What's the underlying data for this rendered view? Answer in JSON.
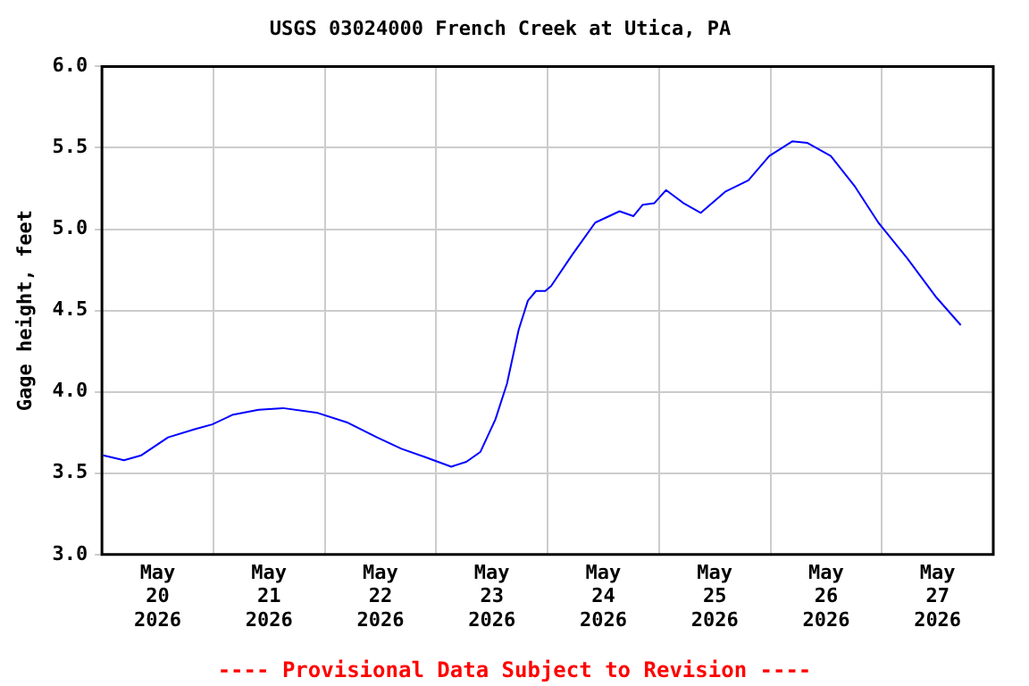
{
  "chart_data": {
    "type": "line",
    "title": "USGS 03024000 French Creek at Utica, PA",
    "ylabel": "Gage height, feet",
    "annotations": [
      "---- Provisional Data Subject to Revision ----"
    ],
    "x": [
      "2026-05-20T00:15",
      "2026-05-20T04:45",
      "2026-05-20T08:30",
      "2026-05-20T14:15",
      "2026-05-20T20:00",
      "2026-05-20T23:45",
      "2026-05-21T04:15",
      "2026-05-21T09:45",
      "2026-05-21T15:00",
      "2026-05-21T22:30",
      "2026-05-22T05:00",
      "2026-05-22T11:15",
      "2026-05-22T16:30",
      "2026-05-22T21:30",
      "2026-05-23T03:15",
      "2026-05-23T06:30",
      "2026-05-23T09:30",
      "2026-05-23T12:45",
      "2026-05-23T15:15",
      "2026-05-23T17:45",
      "2026-05-23T19:45",
      "2026-05-23T21:30",
      "2026-05-23T23:30",
      "2026-05-24T00:45",
      "2026-05-24T05:15",
      "2026-05-24T10:15",
      "2026-05-24T15:30",
      "2026-05-24T18:30",
      "2026-05-24T20:30",
      "2026-05-24T23:00",
      "2026-05-25T01:30",
      "2026-05-25T05:15",
      "2026-05-25T09:00",
      "2026-05-25T14:15",
      "2026-05-25T19:15",
      "2026-05-25T23:45",
      "2026-05-26T04:45",
      "2026-05-26T08:00",
      "2026-05-26T13:00",
      "2026-05-26T18:15",
      "2026-05-26T23:15",
      "2026-05-27T05:30",
      "2026-05-27T11:45",
      "2026-05-27T17:00"
    ],
    "series": [
      {
        "color": "#0000ff",
        "values": [
          3.61,
          3.58,
          3.61,
          3.72,
          3.77,
          3.8,
          3.86,
          3.89,
          3.9,
          3.87,
          3.81,
          3.72,
          3.65,
          3.6,
          3.54,
          3.57,
          3.63,
          3.83,
          4.05,
          4.38,
          4.56,
          4.62,
          4.62,
          4.65,
          4.84,
          5.04,
          5.11,
          5.08,
          5.15,
          5.16,
          5.24,
          5.16,
          5.1,
          5.23,
          5.3,
          5.45,
          5.54,
          5.53,
          5.45,
          5.26,
          5.04,
          4.82,
          4.58,
          4.41
        ]
      }
    ],
    "xlim": [
      "2026-05-20T00:00",
      "2026-05-28T00:00"
    ],
    "xticks": [
      {
        "value": "2026-05-20T12:00",
        "label": "May\n20\n2026"
      },
      {
        "value": "2026-05-21T00:00",
        "label": null
      },
      {
        "value": "2026-05-21T12:00",
        "label": "May\n21\n2026"
      },
      {
        "value": "2026-05-22T00:00",
        "label": null
      },
      {
        "value": "2026-05-22T12:00",
        "label": "May\n22\n2026"
      },
      {
        "value": "2026-05-23T00:00",
        "label": null
      },
      {
        "value": "2026-05-23T12:00",
        "label": "May\n23\n2026"
      },
      {
        "value": "2026-05-24T00:00",
        "label": null
      },
      {
        "value": "2026-05-24T12:00",
        "label": "May\n24\n2026"
      },
      {
        "value": "2026-05-25T00:00",
        "label": null
      },
      {
        "value": "2026-05-25T12:00",
        "label": "May\n25\n2026"
      },
      {
        "value": "2026-05-26T00:00",
        "label": null
      },
      {
        "value": "2026-05-26T12:00",
        "label": "May\n26\n2026"
      },
      {
        "value": "2026-05-27T00:00",
        "label": null
      },
      {
        "value": "2026-05-27T12:00",
        "label": "May\n27\n2026"
      }
    ],
    "ylim": [
      3.0,
      6.0
    ],
    "yticks": [
      {
        "value": 3.0,
        "label": "3.0"
      },
      {
        "value": 3.5,
        "label": "3.5"
      },
      {
        "value": 4.0,
        "label": "4.0"
      },
      {
        "value": 4.5,
        "label": "4.5"
      },
      {
        "value": 5.0,
        "label": "5.0"
      },
      {
        "value": 5.5,
        "label": "5.5"
      },
      {
        "value": 6.0,
        "label": "6.0"
      }
    ],
    "grid": true,
    "marker": "none",
    "line_style": "solid"
  }
}
